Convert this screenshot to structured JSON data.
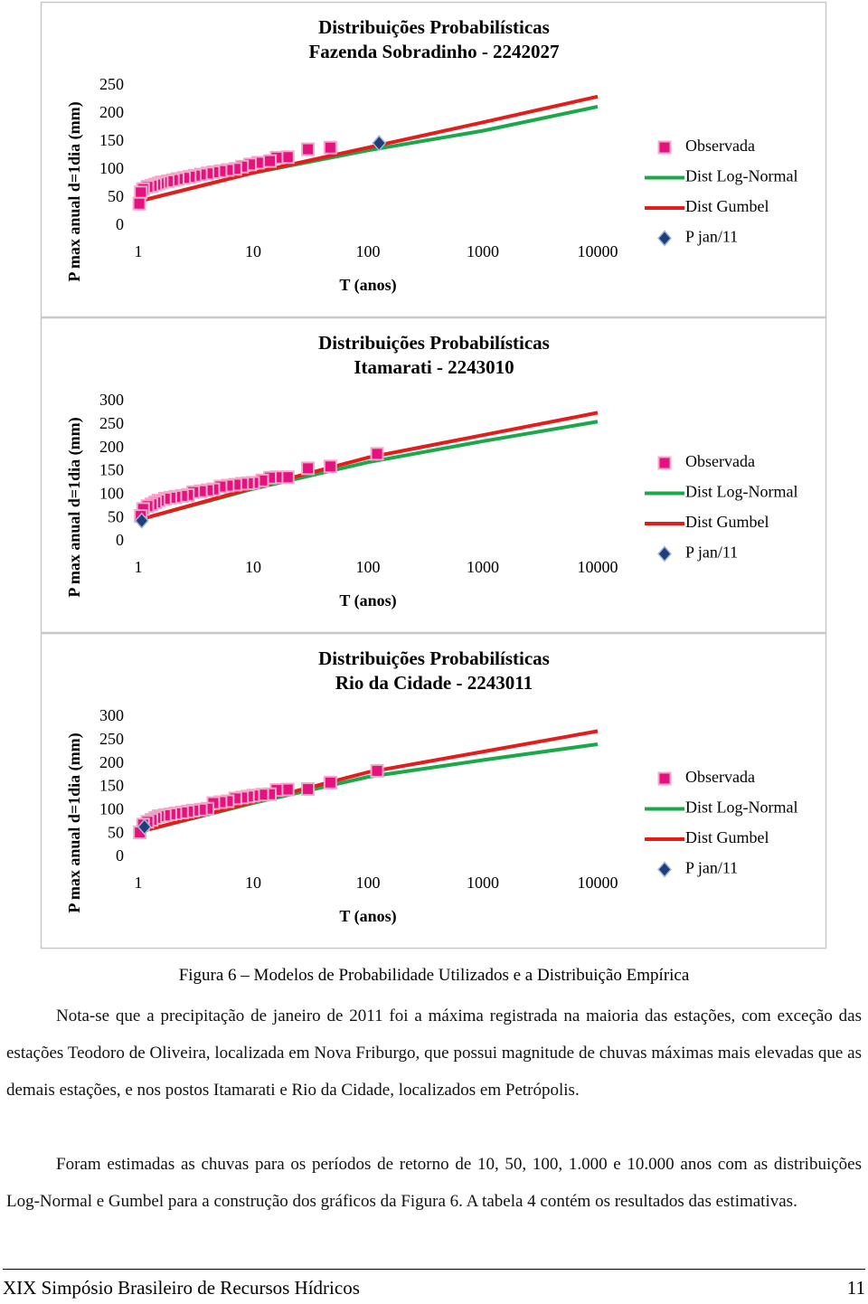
{
  "chart_data": [
    {
      "type": "scatter",
      "title": "Distribuições Probabilísticas",
      "subtitle": "Fazenda Sobradinho - 2242027",
      "x_label": "T (anos)",
      "y_label": "P max anual d=1dia (mm)",
      "xscale": "log",
      "xlim": [
        1,
        10000
      ],
      "xticks": [
        1,
        10,
        100,
        1000,
        10000
      ],
      "ylim": [
        0,
        250
      ],
      "yticks": [
        0,
        50,
        100,
        150,
        200,
        250
      ],
      "grid": false,
      "legend": "right",
      "series": [
        {
          "name": "Observada",
          "color": "#e4127f",
          "marker": "square",
          "x": [
            47,
            30,
            20,
            16,
            14,
            11,
            9.4,
            8,
            7,
            6,
            5.2,
            4.5,
            4,
            3.5,
            3.1,
            2.8,
            2.5,
            2.2,
            2,
            1.8,
            1.6,
            1.5,
            1.4,
            1.3,
            1.2,
            1.1,
            1.05,
            1.02
          ],
          "values": [
            140,
            137,
            123,
            122,
            116,
            113,
            110,
            106,
            102,
            100,
            98,
            96,
            94,
            92,
            90,
            88,
            86,
            84,
            82,
            80,
            78,
            76,
            74,
            72,
            70,
            66,
            60,
            40
          ]
        },
        {
          "name": "Dist Log-Normal",
          "color": "#1ca84a",
          "marker": "line",
          "x": [
            1.05,
            10,
            100,
            1000,
            10000
          ],
          "values": [
            45,
            95,
            135,
            170,
            213
          ]
        },
        {
          "name": "Dist Gumbel",
          "color": "#e31c1c",
          "marker": "line",
          "x": [
            1.05,
            10,
            100,
            1000,
            10000
          ],
          "values": [
            45,
            95,
            140,
            185,
            231
          ]
        },
        {
          "name": "P jan/11",
          "color": "#1f3f7a",
          "marker": "diamond",
          "x": [
            125
          ],
          "values": [
            148
          ]
        }
      ]
    },
    {
      "type": "scatter",
      "title": "Distribuições Probabilísticas",
      "subtitle": "Itamarati - 2243010",
      "x_label": "T (anos)",
      "y_label": "P max anual d=1dia (mm)",
      "xscale": "log",
      "xlim": [
        1,
        10000
      ],
      "xticks": [
        1,
        10,
        100,
        1000,
        10000
      ],
      "ylim": [
        0,
        300
      ],
      "yticks": [
        0,
        50,
        100,
        150,
        200,
        250,
        300
      ],
      "grid": false,
      "legend": "right",
      "series": [
        {
          "name": "Observada",
          "color": "#e4127f",
          "marker": "square",
          "x": [
            120,
            47,
            30,
            20,
            16,
            14,
            12,
            10,
            9,
            8,
            7,
            6,
            5.2,
            4.5,
            4,
            3.5,
            3,
            2.7,
            2.4,
            2.1,
            1.9,
            1.7,
            1.5,
            1.4,
            1.3,
            1.2,
            1.1,
            1.05
          ],
          "values": [
            188,
            161,
            157,
            138,
            138,
            137,
            131,
            126,
            125,
            124,
            122,
            120,
            118,
            112,
            110,
            108,
            106,
            100,
            98,
            96,
            94,
            92,
            88,
            84,
            80,
            76,
            70,
            55
          ]
        },
        {
          "name": "Dist Log-Normal",
          "color": "#1ca84a",
          "marker": "line",
          "x": [
            1.05,
            10,
            100,
            1000,
            10000
          ],
          "values": [
            48,
            113,
            170,
            215,
            257
          ]
        },
        {
          "name": "Dist Gumbel",
          "color": "#e31c1c",
          "marker": "line",
          "x": [
            1.05,
            10,
            100,
            1000,
            10000
          ],
          "values": [
            48,
            115,
            180,
            228,
            276
          ]
        },
        {
          "name": "P jan/11",
          "color": "#1f3f7a",
          "marker": "diamond",
          "x": [
            1.07
          ],
          "values": [
            45
          ]
        }
      ]
    },
    {
      "type": "scatter",
      "title": "Distribuições Probabilísticas",
      "subtitle": "Rio da Cidade - 2243011",
      "x_label": "T (anos)",
      "y_label": "P max anual d=1dia (mm)",
      "xscale": "log",
      "xlim": [
        1,
        10000
      ],
      "xticks": [
        1,
        10,
        100,
        1000,
        10000
      ],
      "ylim": [
        0,
        300
      ],
      "yticks": [
        0,
        50,
        100,
        150,
        200,
        250,
        300
      ],
      "grid": false,
      "legend": "right",
      "series": [
        {
          "name": "Observada",
          "color": "#e4127f",
          "marker": "square",
          "x": [
            120,
            47,
            30,
            20,
            16,
            14,
            12,
            10,
            9,
            8,
            7,
            6,
            5.2,
            4.5,
            4,
            3.5,
            3,
            2.7,
            2.4,
            2.1,
            1.9,
            1.7,
            1.5,
            1.4,
            1.3,
            1.2,
            1.1,
            1.03
          ],
          "values": [
            185,
            160,
            146,
            145,
            144,
            135,
            134,
            132,
            130,
            128,
            126,
            120,
            118,
            116,
            104,
            102,
            100,
            98,
            96,
            94,
            92,
            90,
            88,
            84,
            80,
            76,
            70,
            53
          ]
        },
        {
          "name": "Dist Log-Normal",
          "color": "#1ca84a",
          "marker": "line",
          "x": [
            1.05,
            10,
            100,
            1000,
            10000
          ],
          "values": [
            55,
            116,
            172,
            208,
            242
          ]
        },
        {
          "name": "Dist Gumbel",
          "color": "#e31c1c",
          "marker": "line",
          "x": [
            1.05,
            10,
            100,
            1000,
            10000
          ],
          "values": [
            55,
            118,
            182,
            226,
            270
          ]
        },
        {
          "name": "P jan/11",
          "color": "#1f3f7a",
          "marker": "diamond",
          "x": [
            1.13
          ],
          "values": [
            65
          ]
        }
      ]
    }
  ],
  "caption": "Figura 6 – Modelos de Probabilidade Utilizados e a Distribuição Empírica",
  "paragraphs": [
    "Nota-se que a precipitação de janeiro de 2011 foi a máxima registrada na maioria das estações, com exceção das estações Teodoro de Oliveira, localizada em Nova Friburgo, que possui magnitude de chuvas máximas mais elevadas que as demais estações, e nos postos Itamarati e Rio da Cidade, localizados em Petrópolis.",
    "Foram estimadas as chuvas para os períodos de retorno de 10, 50, 100, 1.000 e 10.000 anos com as distribuições Log-Normal e Gumbel para a construção dos gráficos da Figura 6. A tabela 4 contém os resultados das estimativas."
  ],
  "footer": {
    "left": "XIX Simpósio Brasileiro de Recursos Hídricos",
    "page": "11"
  }
}
